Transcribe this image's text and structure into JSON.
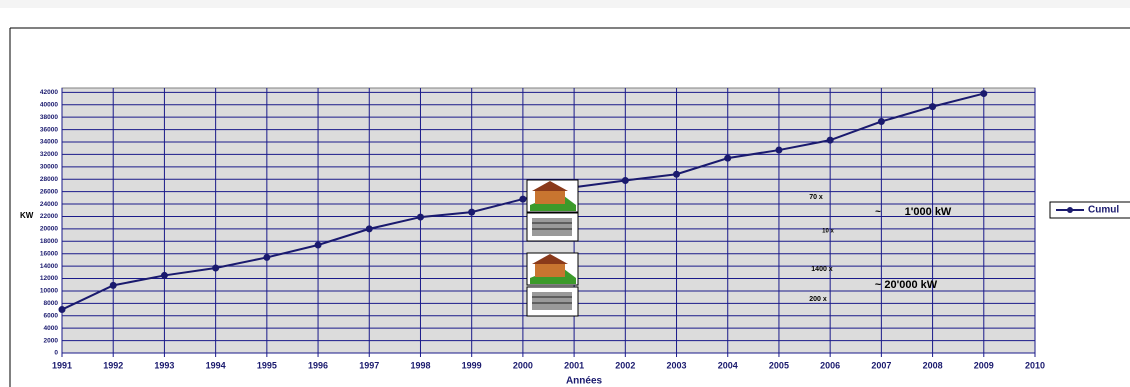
{
  "chart_data": {
    "type": "line",
    "x_label": "Années",
    "y_label": "KW",
    "x": [
      1991,
      1992,
      1993,
      1994,
      1995,
      1996,
      1997,
      1998,
      1999,
      2000,
      2001,
      2002,
      2003,
      2004,
      2005,
      2006,
      2007,
      2008,
      2009
    ],
    "series": [
      {
        "name": "Cumul",
        "color": "#1a1a6e",
        "values": [
          7000,
          10900,
          12500,
          13700,
          15400,
          17400,
          20000,
          21900,
          22700,
          24800,
          26700,
          27800,
          28800,
          31400,
          32700,
          34300,
          37300,
          39700,
          41800
        ]
      }
    ],
    "xlim": [
      1991,
      2010
    ],
    "xticks": [
      1991,
      1992,
      1993,
      1994,
      1995,
      1996,
      1997,
      1998,
      1999,
      2000,
      2001,
      2002,
      2003,
      2004,
      2005,
      2006,
      2007,
      2008,
      2009,
      2010
    ],
    "ylim": [
      0,
      42700
    ],
    "yticks": [
      0,
      2000,
      4000,
      6000,
      8000,
      10000,
      12000,
      14000,
      16000,
      18000,
      20000,
      22000,
      24000,
      26000,
      28000,
      30000,
      32000,
      34000,
      36000,
      38000,
      40000,
      42000
    ],
    "grid": true,
    "legend": "right",
    "annotations": [
      "70 x",
      "10 x",
      "1400 x",
      "200 x",
      "~",
      "1'000 kW",
      "~ 20'000 kW"
    ]
  }
}
